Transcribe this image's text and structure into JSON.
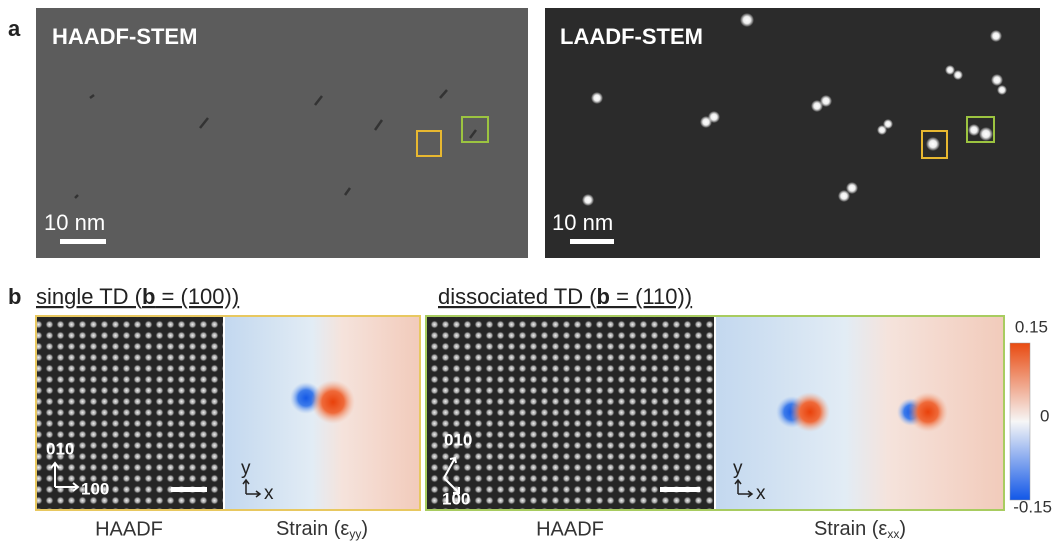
{
  "panel_a": {
    "label": "a",
    "images": [
      {
        "title": "HAADF-STEM",
        "scale_bar": "10 nm"
      },
      {
        "title": "LAADF-STEM",
        "scale_bar": "10 nm"
      }
    ]
  },
  "panel_b": {
    "label": "b",
    "groups": [
      {
        "heading_start": "single TD (",
        "heading_bold": "b",
        "heading_end": " = (100))"
      },
      {
        "heading_start": "dissociated TD (",
        "heading_bold": "b",
        "heading_end": " = (110))"
      }
    ],
    "images": [
      {
        "caption": "HAADF",
        "axis_1": "010",
        "axis_2": "100"
      },
      {
        "caption_start": "Strain (ε",
        "caption_sub": "yy",
        "caption_end": ")",
        "axis_1": "y",
        "axis_2": "x"
      },
      {
        "caption": "HAADF",
        "axis_1": "010",
        "axis_2": "100"
      },
      {
        "caption_start": "Strain (ε",
        "caption_sub": "xx",
        "caption_end": ")",
        "axis_1": "y",
        "axis_2": "x"
      }
    ],
    "colorbar": {
      "top": "0.15",
      "middle": "0",
      "bottom": "-0.15"
    }
  }
}
